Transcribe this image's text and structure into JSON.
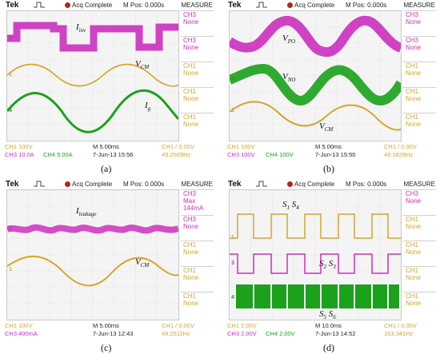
{
  "colors": {
    "ch1": "#d4a62a",
    "ch3": "#cc2fbf",
    "ch4": "#1ba11b",
    "trigger_dot": "#b5251a"
  },
  "panels": [
    {
      "caption": "(a)",
      "topbar": {
        "brand": "Tek",
        "status": "Acq Complete",
        "mpos": "M Pos: 0.000s",
        "menu": "MEASURE"
      },
      "side": [
        {
          "label": "CH3",
          "value": "None",
          "color": "ch3"
        },
        {
          "label": "CH3",
          "value": "None",
          "color": "ch3"
        },
        {
          "label": "CH1",
          "value": "None",
          "color": "ch1"
        },
        {
          "label": "CH1",
          "value": "None",
          "color": "ch1"
        },
        {
          "label": "CH1",
          "value": "None",
          "color": "ch1"
        }
      ],
      "bottom": {
        "r1a": "CH1  100V",
        "r1b": "M 5.00ms",
        "r1c": "CH1  /  0.00V",
        "r2a": "CH3  10.0A",
        "r2a2": "CH4  5.00A",
        "r2b": "7-Jun-13 15:56",
        "r2c": "49.2509Hz"
      },
      "signals": [
        "Iinv",
        "VCM",
        "Ig"
      ]
    },
    {
      "caption": "(b)",
      "topbar": {
        "brand": "Tek",
        "status": "Acq Complete",
        "mpos": "M Pos: 0.000s",
        "menu": "MEASURE"
      },
      "side": [
        {
          "label": "CH3",
          "value": "None",
          "color": "ch3"
        },
        {
          "label": "CH3",
          "value": "None",
          "color": "ch3"
        },
        {
          "label": "CH1",
          "value": "None",
          "color": "ch1"
        },
        {
          "label": "CH1",
          "value": "None",
          "color": "ch1"
        },
        {
          "label": "CH1",
          "value": "None",
          "color": "ch1"
        }
      ],
      "bottom": {
        "r1a": "CH1  100V",
        "r1b": "M 5.00ms",
        "r1c": "CH1  /  0.00V",
        "r2a": "CH3  100V",
        "r2a2": "CH4  100V",
        "r2b": "7-Jun-13 15:50",
        "r2c": "49.1826Hz"
      },
      "signals": [
        "VPO",
        "VNO",
        "VCM"
      ]
    },
    {
      "caption": "(c)",
      "topbar": {
        "brand": "Tek",
        "status": "Acq Complete",
        "mpos": "M Pos: 0.000s",
        "menu": "MEASURE"
      },
      "side": [
        {
          "label": "CH3",
          "value": "Max",
          "extra": "144mA",
          "color": "ch3"
        },
        {
          "label": "CH3",
          "value": "None",
          "color": "ch3"
        },
        {
          "label": "CH1",
          "value": "None",
          "color": "ch1"
        },
        {
          "label": "CH1",
          "value": "None",
          "color": "ch1"
        },
        {
          "label": "CH1",
          "value": "None",
          "color": "ch1"
        }
      ],
      "bottom": {
        "r1a": "CH1  100V",
        "r1b": "M 5.00ms",
        "r1c": "CH1  /  0.00V",
        "r2a": "CH3  400mA",
        "r2a2": "",
        "r2b": "7-Jun-13 12:43",
        "r2c": "49.2511Hz"
      },
      "signals": [
        "Ileakage",
        "VCM"
      ]
    },
    {
      "caption": "(d)",
      "topbar": {
        "brand": "Tek",
        "status": "Acq Complete",
        "mpos": "M Pos: 0.000s",
        "menu": "MEASURE"
      },
      "side": [
        {
          "label": "CH3",
          "value": "None",
          "color": "ch3"
        },
        {
          "label": "CH1",
          "value": "None",
          "color": "ch1"
        },
        {
          "label": "CH1",
          "value": "None",
          "color": "ch1"
        },
        {
          "label": "CH1",
          "value": "None",
          "color": "ch1"
        },
        {
          "label": "CH1",
          "value": "None",
          "color": "ch1"
        }
      ],
      "bottom": {
        "r1a": "CH1  2.00V",
        "r1b": "M 10.0ms",
        "r1c": "CH1  /  0.00V",
        "r2a": "CH3  2.00V",
        "r2a2": "CH4  2.00V",
        "r2b": "7-Jun-13 14:52",
        "r2c": "163.341Hz"
      },
      "signals": [
        "S1 S4",
        "S2 S3",
        "S5 S6"
      ]
    }
  ]
}
